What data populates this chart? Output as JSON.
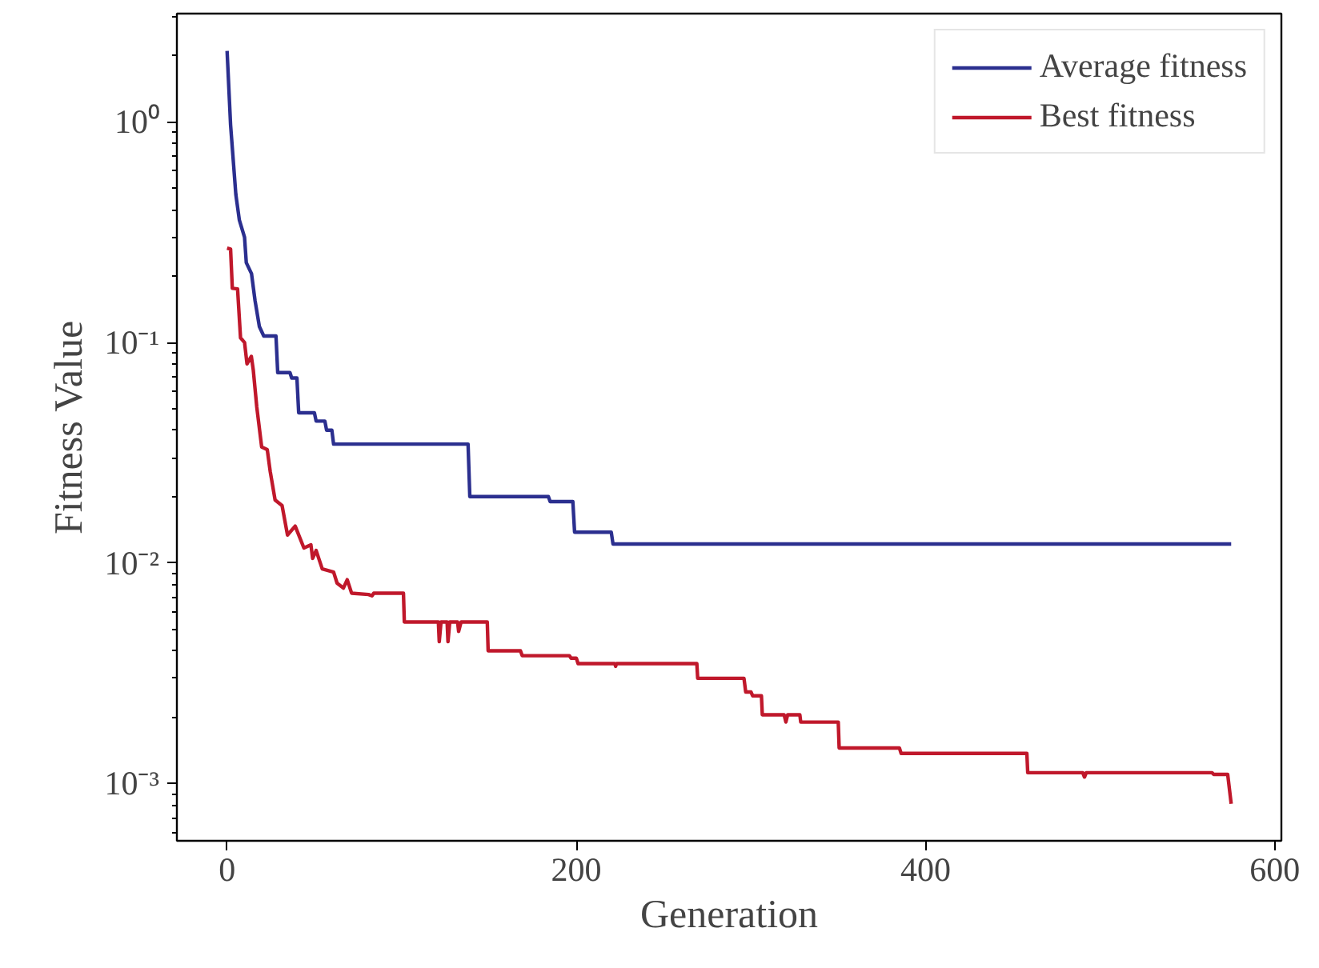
{
  "chart_data": {
    "type": "line",
    "xlabel": "Generation",
    "ylabel": "Fitness Value",
    "log": "y",
    "grid": false,
    "legend": "top right",
    "marker": "none",
    "line_style": "solid",
    "xlim": [
      -28.75,
      603.75
    ],
    "xticks": [
      0,
      200,
      400,
      600
    ],
    "ylim": [
      0.00055,
      3.1
    ],
    "yticks": [
      {
        "value": 1,
        "label": "10⁰"
      },
      {
        "value": 0.1,
        "label": "10⁻¹"
      },
      {
        "value": 0.01,
        "label": "10⁻²"
      },
      {
        "value": 0.001,
        "label": "10⁻³"
      }
    ],
    "series": [
      {
        "name": "Average fitness",
        "color": "#2b2f8f",
        "x": [
          0,
          2,
          5,
          7,
          10,
          11,
          14,
          16,
          18.5,
          21,
          28,
          29,
          36,
          37,
          40,
          41,
          50,
          51,
          56,
          57,
          60,
          61,
          138,
          139,
          184,
          185,
          198,
          199,
          220,
          221,
          575
        ],
        "values": [
          2.1,
          0.97,
          0.47,
          0.36,
          0.3,
          0.23,
          0.205,
          0.155,
          0.118,
          0.107,
          0.107,
          0.073,
          0.073,
          0.069,
          0.069,
          0.048,
          0.048,
          0.044,
          0.044,
          0.04,
          0.04,
          0.0346,
          0.0346,
          0.02,
          0.02,
          0.019,
          0.019,
          0.0138,
          0.0138,
          0.0122,
          0.0122
        ]
      },
      {
        "name": "Best fitness",
        "color": "#c0182b",
        "x": [
          0,
          2,
          3,
          6,
          7.7,
          10,
          11.4,
          13.9,
          15,
          17,
          19.8,
          23,
          24.7,
          27.5,
          31.5,
          34.6,
          39,
          44,
          48,
          49,
          51,
          54.5,
          61,
          63,
          66.6,
          68.8,
          71.3,
          81,
          83,
          84,
          101,
          101.5,
          121,
          121.5,
          122.5,
          126,
          126.5,
          127.5,
          132,
          132.6,
          134,
          149,
          149.5,
          168,
          169,
          196,
          197,
          200,
          201,
          222,
          222.5,
          223,
          269,
          269.5,
          296,
          297,
          300,
          301,
          306,
          306.5,
          319,
          320,
          321,
          328,
          328.5,
          350,
          350.5,
          385,
          386,
          458,
          458.5,
          490,
          491,
          492,
          564,
          565,
          573,
          575
        ],
        "values": [
          0.268,
          0.265,
          0.176,
          0.175,
          0.105,
          0.1,
          0.08,
          0.0865,
          0.075,
          0.051,
          0.0336,
          0.0327,
          0.026,
          0.0193,
          0.0182,
          0.0134,
          0.0147,
          0.0117,
          0.0121,
          0.0105,
          0.0114,
          0.0094,
          0.0091,
          0.0081,
          0.0077,
          0.0084,
          0.0073,
          0.0072,
          0.0071,
          0.0073,
          0.0073,
          0.0054,
          0.0054,
          0.0044,
          0.0054,
          0.0054,
          0.0044,
          0.0054,
          0.0054,
          0.0049,
          0.0054,
          0.0054,
          0.004,
          0.004,
          0.0038,
          0.0038,
          0.0037,
          0.0037,
          0.0035,
          0.0035,
          0.0034,
          0.0035,
          0.0035,
          0.003,
          0.003,
          0.0026,
          0.0026,
          0.0025,
          0.0025,
          0.00205,
          0.00205,
          0.0019,
          0.00205,
          0.00205,
          0.0019,
          0.0019,
          0.00145,
          0.00145,
          0.00137,
          0.00137,
          0.00112,
          0.00112,
          0.00107,
          0.00112,
          0.00112,
          0.0011,
          0.0011,
          0.00081
        ]
      }
    ]
  }
}
